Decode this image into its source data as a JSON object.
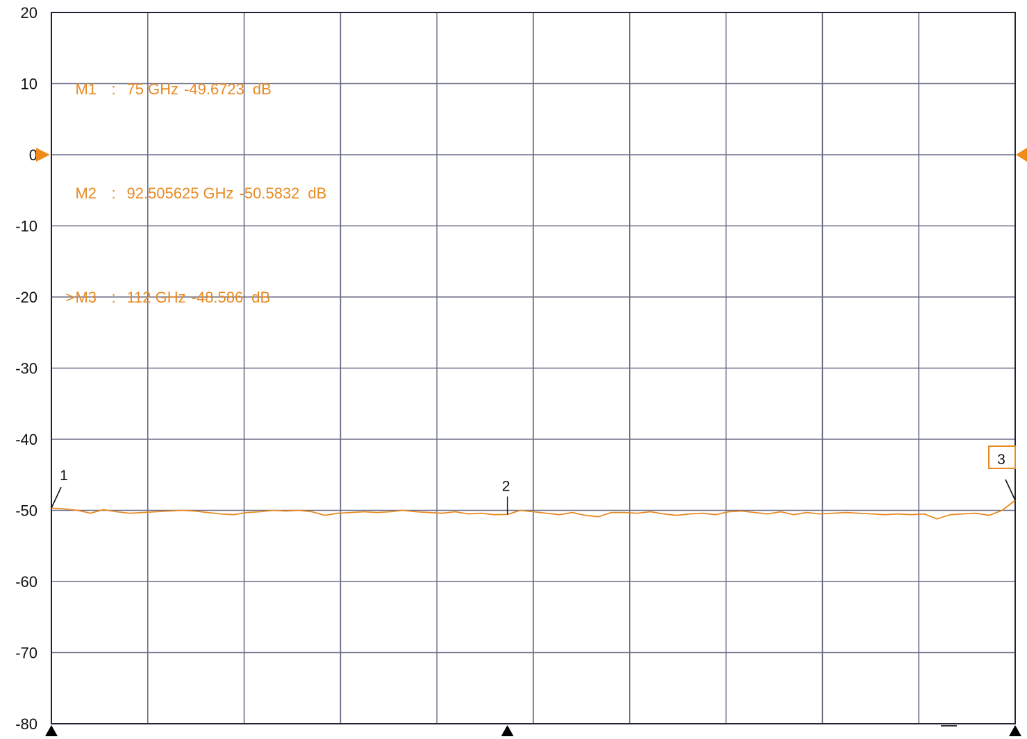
{
  "colors": {
    "trace": "#e88a23",
    "grid": "#6a6e86",
    "border": "#222433",
    "text": "#111111",
    "reference_marker": "#f08a1a"
  },
  "chart_data": {
    "type": "line",
    "title": "",
    "xlabel": "",
    "ylabel": "",
    "x_unit": "GHz",
    "y_unit": "dB",
    "xlim": [
      75,
      112
    ],
    "ylim": [
      -80,
      20
    ],
    "y_ticks": [
      "20",
      "10",
      "0",
      "-10",
      "-20",
      "-30",
      "-40",
      "-50",
      "-60",
      "-70",
      "-80"
    ],
    "x_divisions": 10,
    "grid": true,
    "reference_level": 0,
    "series": [
      {
        "x": [
          75,
          75.5,
          76,
          76.5,
          77,
          77.5,
          78,
          78.5,
          79,
          79.5,
          80,
          80.5,
          81,
          81.5,
          82,
          82.5,
          83,
          83.5,
          84,
          84.5,
          85,
          85.5,
          86,
          86.5,
          87,
          87.5,
          88,
          88.5,
          89,
          89.5,
          90,
          90.5,
          91,
          91.5,
          92,
          92.5,
          93,
          93.5,
          94,
          94.5,
          95,
          95.5,
          96,
          96.5,
          97,
          97.5,
          98,
          98.5,
          99,
          99.5,
          100,
          100.5,
          101,
          101.5,
          102,
          102.5,
          103,
          103.5,
          104,
          104.5,
          105,
          105.5,
          106,
          106.5,
          107,
          107.5,
          108,
          108.5,
          109,
          109.5,
          110,
          110.5,
          111,
          111.5,
          112
        ],
        "y": [
          -49.7,
          -49.8,
          -50.0,
          -50.4,
          -49.9,
          -50.2,
          -50.4,
          -50.3,
          -50.2,
          -50.1,
          -50.0,
          -50.1,
          -50.3,
          -50.5,
          -50.6,
          -50.3,
          -50.2,
          -50.0,
          -50.1,
          -50.0,
          -50.2,
          -50.7,
          -50.4,
          -50.3,
          -50.2,
          -50.3,
          -50.2,
          -50.0,
          -50.2,
          -50.3,
          -50.4,
          -50.2,
          -50.5,
          -50.4,
          -50.6,
          -50.58,
          -50.0,
          -50.2,
          -50.4,
          -50.6,
          -50.3,
          -50.7,
          -50.9,
          -50.3,
          -50.3,
          -50.4,
          -50.2,
          -50.5,
          -50.7,
          -50.5,
          -50.4,
          -50.6,
          -50.2,
          -50.1,
          -50.3,
          -50.5,
          -50.2,
          -50.6,
          -50.3,
          -50.5,
          -50.4,
          -50.3,
          -50.4,
          -50.5,
          -50.6,
          -50.5,
          -50.6,
          -50.5,
          -51.2,
          -50.6,
          -50.5,
          -50.4,
          -50.7,
          -50.0,
          -48.59
        ]
      }
    ],
    "markers": [
      {
        "id": "1",
        "x": 75,
        "y": -49.6723
      },
      {
        "id": "2",
        "x": 92.505625,
        "y": -50.5832
      },
      {
        "id": "3",
        "x": 112,
        "y": -48.586,
        "active": true
      }
    ],
    "readout": [
      {
        "prefix": "",
        "name": "M1",
        "sep": ":",
        "freq": "75 GHz",
        "value": "-49.6723",
        "unit": "dB"
      },
      {
        "prefix": "",
        "name": "M2",
        "sep": ":",
        "freq": "92.505625 GHz",
        "value": "-50.5832",
        "unit": "dB"
      },
      {
        "prefix": ">",
        "name": "M3",
        "sep": ":",
        "freq": "112 GHz",
        "value": "-48.586",
        "unit": "dB"
      }
    ]
  }
}
